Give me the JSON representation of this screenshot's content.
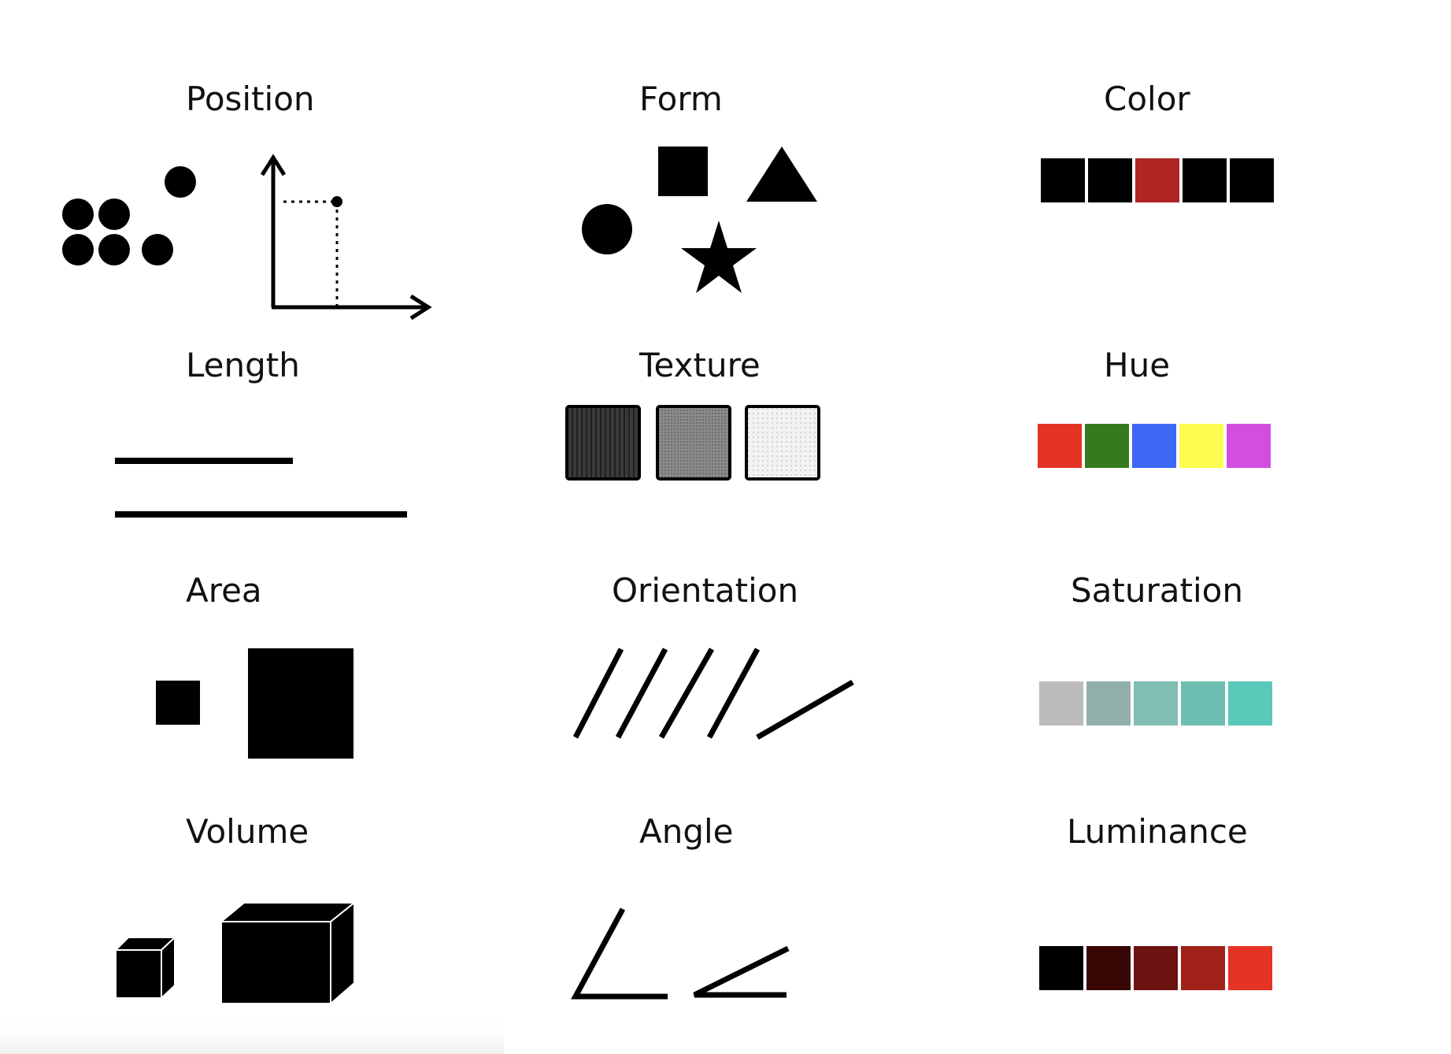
{
  "labels": {
    "position": "Position",
    "form": "Form",
    "color": "Color",
    "length": "Length",
    "texture": "Texture",
    "hue": "Hue",
    "area": "Area",
    "orientation": "Orientation",
    "saturation": "Saturation",
    "volume": "Volume",
    "angle": "Angle",
    "luminance": "Luminance"
  },
  "swatches": {
    "color": [
      "#000000",
      "#000000",
      "#b02424",
      "#000000",
      "#000000"
    ],
    "hue": [
      "#e53325",
      "#357a1f",
      "#3d67f5",
      "#fdfd4f",
      "#d34ee0"
    ],
    "saturation": [
      "#bcbcbc",
      "#92b0a9",
      "#80bdb3",
      "#6cbeb0",
      "#5ac9b9"
    ],
    "luminance": [
      "#000000",
      "#3a0505",
      "#6c1210",
      "#a02219",
      "#e53325"
    ]
  },
  "icons": {
    "position_dots": "dots-cluster-icon",
    "position_axes": "coordinate-axes-icon",
    "form_circle": "circle-icon",
    "form_square": "square-icon",
    "form_triangle": "triangle-icon",
    "form_star": "star-icon",
    "volume_small": "small-cube-icon",
    "volume_large": "large-box-icon"
  }
}
